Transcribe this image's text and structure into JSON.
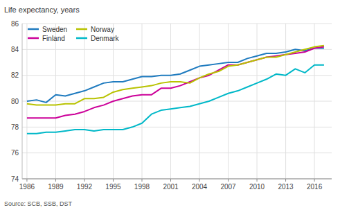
{
  "chart_data": {
    "type": "line",
    "y_label": "Life expectancy, years",
    "source": "Source: SCB, SSB, DST",
    "x": [
      1986,
      1987,
      1988,
      1989,
      1990,
      1991,
      1992,
      1993,
      1994,
      1995,
      1996,
      1997,
      1998,
      1999,
      2000,
      2001,
      2002,
      2003,
      2004,
      2005,
      2006,
      2007,
      2008,
      2009,
      2010,
      2011,
      2012,
      2013,
      2014,
      2015,
      2016,
      2017
    ],
    "series": [
      {
        "name": "Sweden",
        "color": "#1f7bbf",
        "values": [
          80.0,
          80.1,
          79.9,
          80.5,
          80.4,
          80.6,
          80.8,
          81.1,
          81.4,
          81.5,
          81.5,
          81.7,
          81.9,
          81.9,
          82.0,
          82.0,
          82.1,
          82.4,
          82.7,
          82.8,
          82.9,
          83.0,
          83.0,
          83.3,
          83.5,
          83.7,
          83.7,
          83.8,
          84.0,
          83.9,
          84.1,
          84.1
        ]
      },
      {
        "name": "Finland",
        "color": "#cc0099",
        "values": [
          78.7,
          78.7,
          78.7,
          78.7,
          78.9,
          79.0,
          79.2,
          79.5,
          79.7,
          80.0,
          80.2,
          80.4,
          80.5,
          80.5,
          81.0,
          81.0,
          81.2,
          81.5,
          81.8,
          82.0,
          82.4,
          82.8,
          82.8,
          83.0,
          83.2,
          83.4,
          83.5,
          83.6,
          83.7,
          83.8,
          84.1,
          84.2
        ]
      },
      {
        "name": "Norway",
        "color": "#b8c200",
        "values": [
          79.8,
          79.7,
          79.7,
          79.7,
          79.8,
          79.8,
          80.2,
          80.2,
          80.3,
          80.7,
          80.9,
          81.0,
          81.1,
          81.2,
          81.4,
          81.5,
          81.5,
          81.4,
          81.8,
          82.1,
          82.3,
          82.7,
          82.8,
          83.0,
          83.2,
          83.4,
          83.4,
          83.6,
          83.8,
          84.0,
          84.2,
          84.3
        ]
      },
      {
        "name": "Denmark",
        "color": "#00b8c8",
        "values": [
          77.5,
          77.5,
          77.6,
          77.6,
          77.7,
          77.8,
          77.8,
          77.7,
          77.8,
          77.8,
          77.8,
          78.0,
          78.3,
          79.0,
          79.3,
          79.4,
          79.5,
          79.6,
          79.8,
          80.0,
          80.3,
          80.6,
          80.8,
          81.1,
          81.4,
          81.7,
          82.1,
          82.0,
          82.5,
          82.2,
          82.8,
          82.8
        ]
      }
    ],
    "xlim": [
      1985.5,
      2017.8
    ],
    "xticks": [
      1986,
      1989,
      1992,
      1995,
      1998,
      2001,
      2004,
      2007,
      2010,
      2013,
      2016
    ],
    "ylim": [
      74,
      86
    ],
    "yticks": [
      74,
      76,
      78,
      80,
      82,
      84,
      86
    ],
    "grid": true,
    "legend": "top-left"
  }
}
